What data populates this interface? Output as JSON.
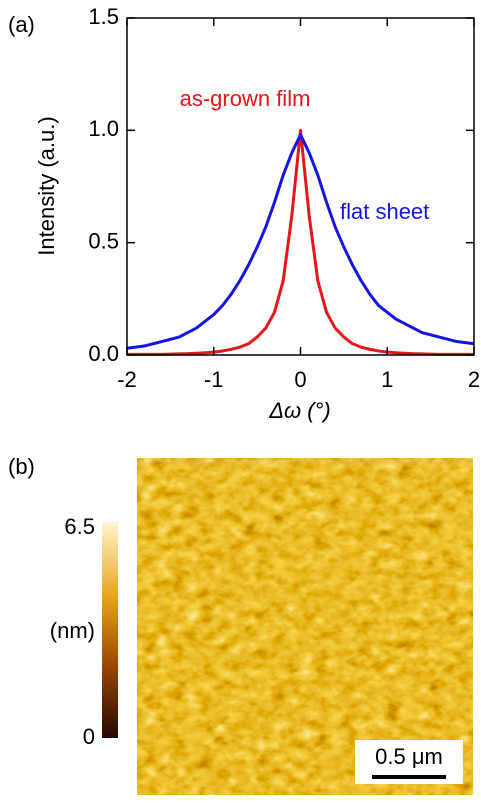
{
  "chart_data": {
    "type": "line",
    "panel_label": "(a)",
    "xlabel": "Δω (°)",
    "ylabel": "Intensity (a.u.)",
    "x": [
      -2,
      -1.9,
      -1.8,
      -1.7,
      -1.6,
      -1.5,
      -1.4,
      -1.3,
      -1.2,
      -1.1,
      -1,
      -0.9,
      -0.8,
      -0.7,
      -0.6,
      -0.5,
      -0.4,
      -0.3,
      -0.2,
      -0.1,
      0,
      0.1,
      0.2,
      0.3,
      0.4,
      0.5,
      0.6,
      0.7,
      0.8,
      0.9,
      1,
      1.1,
      1.2,
      1.3,
      1.4,
      1.5,
      1.6,
      1.7,
      1.8,
      1.9,
      2
    ],
    "series": [
      {
        "name": "as-grown film",
        "color": "#e8151b",
        "values": [
          0.003,
          0.003,
          0.003,
          0.003,
          0.003,
          0.004,
          0.005,
          0.006,
          0.008,
          0.01,
          0.013,
          0.018,
          0.025,
          0.035,
          0.05,
          0.08,
          0.12,
          0.19,
          0.33,
          0.62,
          1.0,
          0.62,
          0.33,
          0.19,
          0.12,
          0.08,
          0.05,
          0.035,
          0.025,
          0.018,
          0.013,
          0.01,
          0.008,
          0.006,
          0.005,
          0.004,
          0.003,
          0.003,
          0.003,
          0.003,
          0.003
        ]
      },
      {
        "name": "flat sheet",
        "color": "#1515e0",
        "values": [
          0.03,
          0.035,
          0.04,
          0.05,
          0.06,
          0.07,
          0.08,
          0.1,
          0.12,
          0.15,
          0.18,
          0.22,
          0.27,
          0.33,
          0.4,
          0.48,
          0.57,
          0.68,
          0.8,
          0.9,
          0.98,
          0.9,
          0.8,
          0.68,
          0.57,
          0.48,
          0.4,
          0.33,
          0.27,
          0.22,
          0.19,
          0.16,
          0.14,
          0.12,
          0.1,
          0.09,
          0.08,
          0.07,
          0.06,
          0.055,
          0.05
        ]
      }
    ],
    "xlim": [
      -2,
      2
    ],
    "xticks": [
      -2,
      -1,
      0,
      1,
      2
    ],
    "ylim": [
      0,
      1.5
    ],
    "yticks": [
      {
        "value": 0,
        "label": "0.0"
      },
      {
        "value": 0.5,
        "label": "0.5"
      },
      {
        "value": 1,
        "label": "1.0"
      },
      {
        "value": 1.5,
        "label": "1.5"
      }
    ]
  },
  "image_panel": {
    "label": "(b)",
    "colorbar": {
      "max": "6.5",
      "unit": "(nm)",
      "min": "0"
    },
    "scale_bar": "0.5 μm"
  }
}
